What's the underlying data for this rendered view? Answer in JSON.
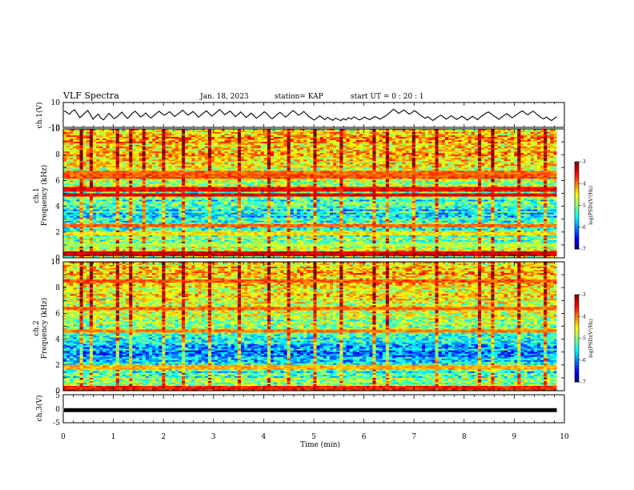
{
  "header": {
    "title": "VLF Spectra",
    "date": "Jan. 18, 2023",
    "station": "station= KAP",
    "start": "start  UT =   0 : 20 : 1"
  },
  "chart_data": [
    {
      "type": "line",
      "name": "ch1-waveform",
      "ylabel": "ch.1(V)",
      "ylim": [
        -10,
        10
      ],
      "ytick_labels": [
        "10",
        "-10"
      ],
      "xlim": [
        0,
        10
      ],
      "xlabel": "",
      "samples": [
        3.2,
        2.1,
        0.5,
        2.8,
        4.1,
        1.0,
        -2.2,
        -0.5,
        1.8,
        3.6,
        0.2,
        -3.5,
        -1.2,
        0.8,
        -2.6,
        -4.0,
        -1.5,
        1.2,
        -0.8,
        -3.0,
        -1.8,
        0.4,
        2.2,
        -0.6,
        -2.8,
        -1.0,
        1.5,
        3.0,
        0.8,
        -1.6,
        -0.4,
        1.6,
        -0.9,
        -2.5,
        -0.7,
        1.1,
        2.9,
        1.4,
        -0.3,
        0.9,
        2.6,
        0.7,
        -1.3,
        0.3,
        2.0,
        3.8,
        1.9,
        -0.2,
        1.3,
        2.7,
        0.6,
        -1.9,
        -0.1,
        1.7,
        3.3,
        1.2,
        -0.9,
        0.5,
        2.4,
        4.3,
        2.5,
        0.1,
        1.6,
        3.1,
        1.0,
        -1.4,
        0.2,
        2.3,
        0.4,
        -2.1,
        -0.6,
        1.4,
        -0.5,
        -2.7,
        -1.1,
        0.7,
        2.5,
        0.9,
        -1.7,
        -3.1,
        -1.4,
        0.6,
        2.0,
        0.3,
        -1.8,
        -0.3,
        1.9,
        3.4,
        1.6,
        -0.4,
        1.1,
        2.8,
        0.5,
        -1.5,
        -2.9,
        -4.2,
        -2.4,
        -0.8,
        -2.3,
        -3.8,
        -1.9,
        -3.3,
        -4.4,
        -2.6,
        -3.6,
        -4.6,
        -3.0,
        -4.1,
        -2.2,
        -3.4,
        -1.6,
        -2.8,
        -4.0,
        -3.2,
        -1.7,
        -2.9,
        -3.9,
        -2.5,
        -1.3,
        -2.4,
        -3.5,
        -2.0,
        -0.9,
        0.8,
        2.6,
        4.5,
        3.0,
        1.2,
        2.7,
        4.0,
        2.2,
        0.6,
        1.8,
        3.5,
        1.9,
        0.2,
        -1.2,
        -2.8,
        -1.4,
        -3.0,
        -4.5,
        -2.9,
        -1.5,
        -0.2,
        -1.8,
        -3.4,
        -2.1,
        -0.7,
        -2.2,
        -3.7,
        -2.4,
        -1.0,
        -2.6,
        -4.1,
        -2.7,
        -1.1,
        -2.5,
        -3.9,
        -1.6,
        -0.3,
        1.2,
        2.4,
        0.9,
        -0.6,
        -2.0,
        -3.6,
        -1.9,
        -0.4,
        1.0,
        -0.7,
        -2.3,
        -1.0,
        0.5,
        2.1,
        3.2,
        1.5,
        0.1,
        1.7,
        3.0,
        1.3,
        -0.5,
        -2.1,
        -3.3,
        -1.8,
        -3.2,
        -4.6,
        -2.9,
        -1.4
      ]
    },
    {
      "type": "heatmap",
      "name": "ch1-spectrogram",
      "ylabel_channel": "ch.1",
      "ylabel": "Frequency (kHz)",
      "ylim": [
        0,
        10
      ],
      "ytick_labels": [
        "0",
        "2",
        "4",
        "6",
        "8",
        "10"
      ],
      "xlim": [
        0,
        10
      ],
      "colorbar": {
        "label": "log(PSD)(V²/Hz)",
        "range": [
          -7,
          -3
        ],
        "tick_labels": [
          "-3",
          "-4",
          "-5",
          "-6",
          "-7"
        ]
      },
      "bands": [
        {
          "freq": 0.3,
          "level": -3.3
        },
        {
          "freq": 1.0,
          "level": -4.8
        },
        {
          "freq": 1.9,
          "level": -4.4
        },
        {
          "freq": 2.5,
          "level": -3.9
        },
        {
          "freq": 4.9,
          "level": -3.4
        },
        {
          "freq": 5.3,
          "level": -3.5
        },
        {
          "freq": 6.3,
          "level": -3.8
        },
        {
          "freq": 6.6,
          "level": -3.9
        }
      ],
      "bursts_min": [
        0.3,
        0.55,
        1.05,
        1.3,
        1.55,
        2.0,
        2.35,
        2.9,
        3.45,
        4.1,
        4.45,
        5.0,
        5.5,
        6.2,
        6.45,
        6.95,
        7.45,
        8.25,
        8.55,
        9.05,
        9.6
      ]
    },
    {
      "type": "heatmap",
      "name": "ch2-spectrogram",
      "ylabel_channel": "ch.2",
      "ylabel": "Frequency (kHz)",
      "ylim": [
        0,
        10
      ],
      "ytick_labels": [
        "0",
        "2",
        "4",
        "6",
        "8",
        "10"
      ],
      "xlim": [
        0,
        10
      ],
      "colorbar": {
        "label": "log(PSD)(V²/Hz)",
        "range": [
          -7,
          -3
        ],
        "tick_labels": [
          "-3",
          "-4",
          "-5",
          "-6",
          "-7"
        ]
      },
      "bands": [
        {
          "freq": 0.2,
          "level": -3.6
        },
        {
          "freq": 1.8,
          "level": -4.2
        },
        {
          "freq": 4.6,
          "level": -4.0
        },
        {
          "freq": 6.4,
          "level": -3.9
        },
        {
          "freq": 8.5,
          "level": -3.8
        }
      ],
      "bursts_min": [
        0.3,
        0.55,
        1.05,
        1.3,
        2.0,
        2.35,
        2.9,
        3.45,
        4.1,
        4.45,
        5.0,
        5.5,
        6.2,
        6.45,
        7.45,
        8.25,
        8.55,
        9.05,
        9.6
      ]
    },
    {
      "type": "line",
      "name": "ch3-waveform",
      "ylabel": "ch.3(V)",
      "ylim": [
        -5,
        5
      ],
      "ytick_labels": [
        "5",
        "0",
        "-5"
      ],
      "xlim": [
        0,
        10
      ],
      "xlabel": "Time  (min)",
      "xtick_labels": [
        "0",
        "1",
        "2",
        "3",
        "4",
        "5",
        "6",
        "7",
        "8",
        "9",
        "10"
      ],
      "band_range": [
        -1.2,
        0.2
      ],
      "data_end_min": 9.85
    }
  ]
}
